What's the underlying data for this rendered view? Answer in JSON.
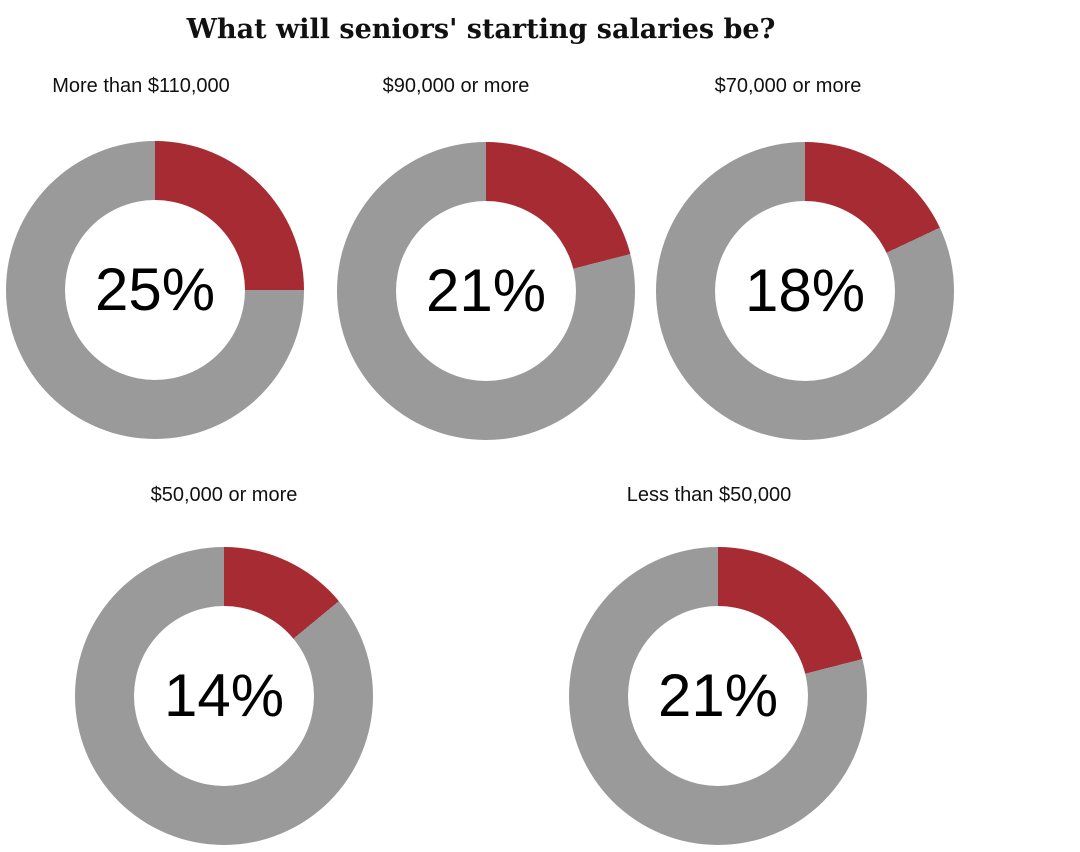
{
  "page": {
    "background": "#ffffff"
  },
  "chart_data": {
    "type": "pie",
    "variant": "donut_small_multiples",
    "title": "What will seniors' starting salaries be?",
    "unit": "%",
    "legend": "none",
    "start_angle_deg": 0,
    "direction": "clockwise",
    "colors": {
      "segment": "#A72B33",
      "track": "#9A9A9A",
      "value_text": "#000000",
      "label_text": "#111111"
    },
    "series": [
      {
        "label": "More than $110,000",
        "value": 25,
        "display": "25%"
      },
      {
        "label": "$90,000 or more",
        "value": 21,
        "display": "21%"
      },
      {
        "label": "$70,000 or more",
        "value": 18,
        "display": "18%"
      },
      {
        "label": "$50,000 or more",
        "value": 14,
        "display": "14%"
      },
      {
        "label": "Less than $50,000",
        "value": 21,
        "display": "21%"
      }
    ]
  }
}
